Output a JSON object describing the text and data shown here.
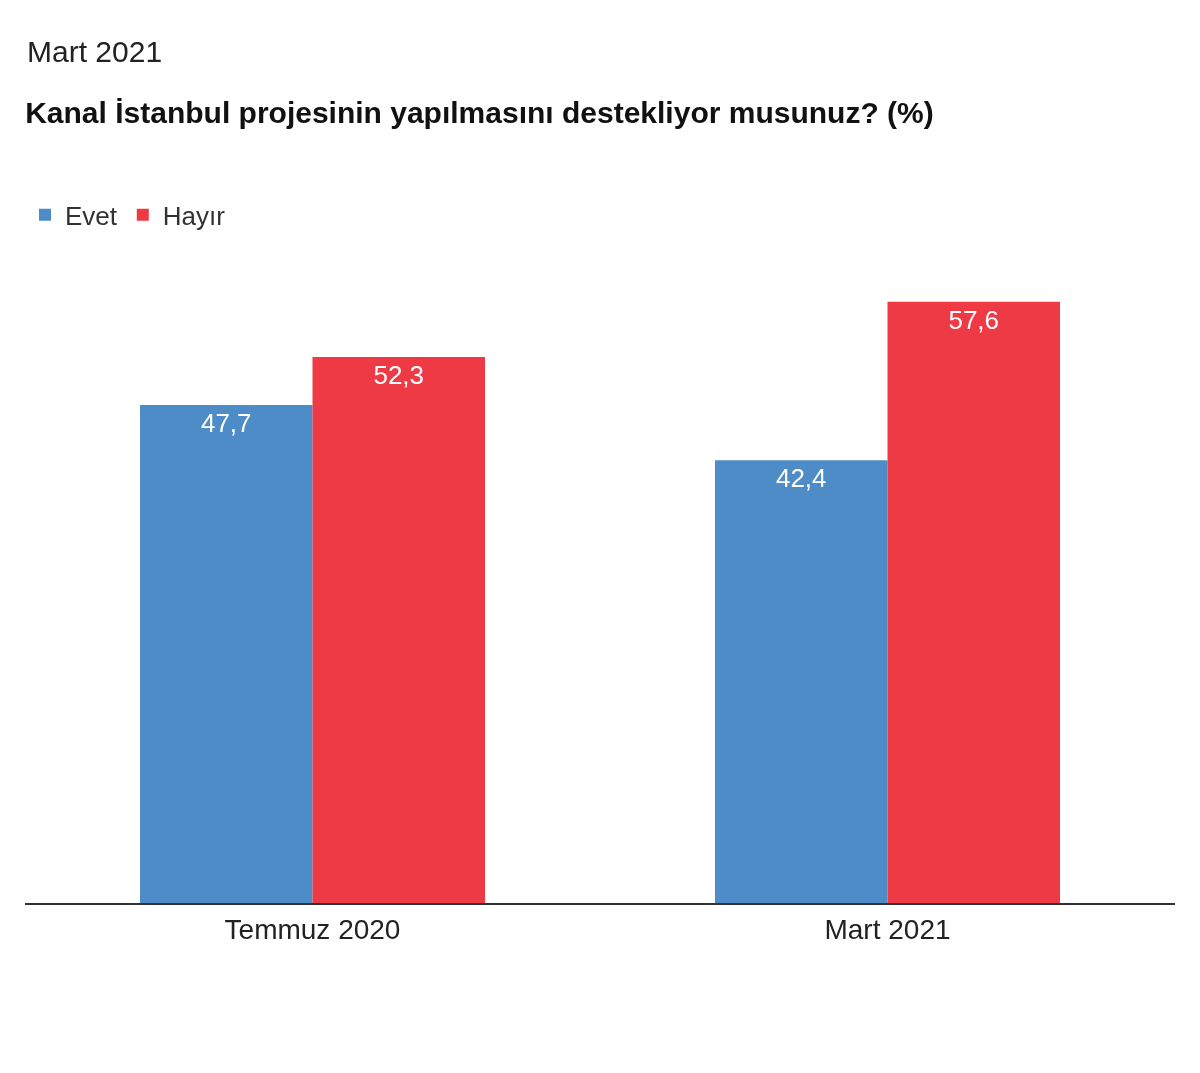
{
  "chart_data": {
    "type": "bar",
    "subtitle": "Mart 2021",
    "title": "Kanal İstanbul projesinin yapılmasını destekliyor musunuz? (%)",
    "categories": [
      "Temmuz 2020",
      "Mart 2021"
    ],
    "series": [
      {
        "name": "Evet",
        "color": "#4e8cc8",
        "values": [
          47.7,
          42.4
        ],
        "value_labels": [
          "47,7",
          "42,4"
        ]
      },
      {
        "name": "Hayır",
        "color": "#ee3a45",
        "values": [
          52.3,
          57.6
        ],
        "value_labels": [
          "52,3",
          "57,6"
        ]
      }
    ],
    "tick_labels": "x",
    "legend": "top left"
  }
}
